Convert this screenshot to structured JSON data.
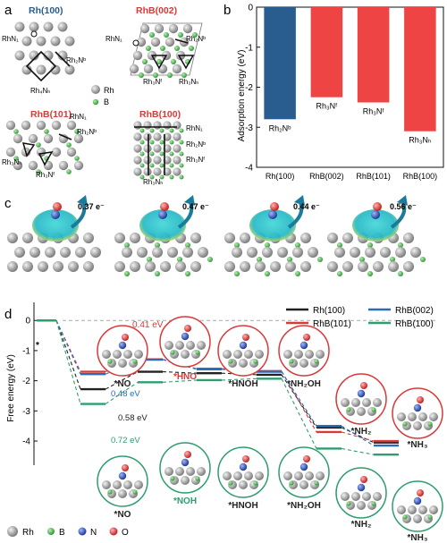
{
  "panels": {
    "a": {
      "letter": "a",
      "structures": [
        {
          "title": "Rh(100)",
          "title_color": "#2a5d8f",
          "labels": [
            "RhN₁",
            "Rh₂Nᵇ",
            "Rh₄Nₕ"
          ]
        },
        {
          "title": "RhB(002)",
          "title_color": "#d83a3a",
          "labels": [
            "RhN₁",
            "Rh₂Nᵇ",
            "Rh₃Nᶠ",
            "Rh₃Nₕ"
          ]
        },
        {
          "title": "RhB(101)",
          "title_color": "#d83a3a",
          "labels": [
            "RhN₁",
            "Rh₂Nᵇ",
            "Rh₃Nₕ",
            "Rh₃Nᶠ"
          ]
        },
        {
          "title": "RhB(100)",
          "title_color": "#d83a3a",
          "labels": [
            "RhN₁",
            "Rh₂Nᵇ",
            "Rh₃Nᶠ",
            "Rh₃Nₕ"
          ]
        }
      ],
      "legend": [
        {
          "label": "Rh",
          "color": "#9a9a9a"
        },
        {
          "label": "B",
          "color": "#4caf50"
        }
      ]
    },
    "b": {
      "letter": "b"
    },
    "c": {
      "letter": "c",
      "charges": [
        "0.37 e⁻",
        "0.47 e⁻",
        "0.44 e⁻",
        "0.56 e⁻"
      ]
    },
    "d": {
      "letter": "d",
      "initial_label": "*",
      "barriers": [
        {
          "text": "0.41 eV",
          "color": "#d83a3a"
        },
        {
          "text": "0.48 eV",
          "color": "#2a6db5"
        },
        {
          "text": "0.58 eV",
          "color": "#222222"
        },
        {
          "text": "0.72 eV",
          "color": "#2e9e6e"
        }
      ],
      "top_labels": [
        "*NO",
        "*HNO",
        "*HNOH",
        "*NH₂OH",
        "*NH₂",
        "*NH₃"
      ],
      "bottom_labels": [
        "*NO",
        "*NOH",
        "*HNOH",
        "*NH₂OH",
        "*NH₂",
        "*NH₃"
      ],
      "top_label_colors": [
        "#222222",
        "#d83a3a",
        "#222222",
        "#222222",
        "#222222",
        "#222222"
      ],
      "bottom_label_colors": [
        "#222222",
        "#2e9e6e",
        "#222222",
        "#222222",
        "#222222",
        "#222222"
      ],
      "atom_legend": [
        {
          "label": "Rh",
          "color": "#9a9a9a"
        },
        {
          "label": "B",
          "color": "#4caf50"
        },
        {
          "label": "N",
          "color": "#2a4fb0"
        },
        {
          "label": "O",
          "color": "#d83a3a"
        }
      ]
    }
  },
  "chart_data": [
    {
      "type": "bar",
      "panel": "b",
      "categories": [
        "Rh(100)",
        "RhB(002)",
        "RhB(101)",
        "RhB(100)"
      ],
      "values": [
        -2.8,
        -2.25,
        -2.38,
        -3.1
      ],
      "bar_labels": [
        "Rh₂Nᵇ",
        "Rh₃Nᶠ",
        "Rh₃Nᶠ",
        "Rh₃Nₕ"
      ],
      "colors": [
        "#2a5d8f",
        "#ee4444",
        "#ee4444",
        "#ee4444"
      ],
      "ylabel": "Adsorption energy (eV)",
      "ylim": [
        -4,
        0
      ],
      "yticks": [
        0,
        -1,
        -2,
        -3,
        -4
      ]
    },
    {
      "type": "line",
      "panel": "d",
      "ylabel": "Free energy (eV)",
      "ylim": [
        -4.8,
        0.6
      ],
      "yticks": [
        0,
        -1,
        -2,
        -3,
        -4
      ],
      "steps": [
        1,
        2,
        3,
        4,
        5,
        6,
        7
      ],
      "series": [
        {
          "name": "Rh(100)",
          "color": "#222222",
          "values": [
            0,
            -2.28,
            -1.7,
            -1.75,
            -1.8,
            -3.55,
            -4.05
          ]
        },
        {
          "name": "RhB(002)",
          "color": "#2a6db5",
          "values": [
            0,
            -1.78,
            -1.3,
            -1.62,
            -1.7,
            -3.5,
            -4.15
          ]
        },
        {
          "name": "RhB(101)",
          "color": "#d83a3a",
          "values": [
            0,
            -1.7,
            -1.29,
            -1.6,
            -1.68,
            -3.7,
            -4.0
          ]
        },
        {
          "name": "RhB(100)",
          "color": "#2e9e6e",
          "values": [
            0,
            -2.77,
            -2.05,
            -1.98,
            -1.93,
            -4.25,
            -4.45
          ]
        }
      ]
    }
  ]
}
